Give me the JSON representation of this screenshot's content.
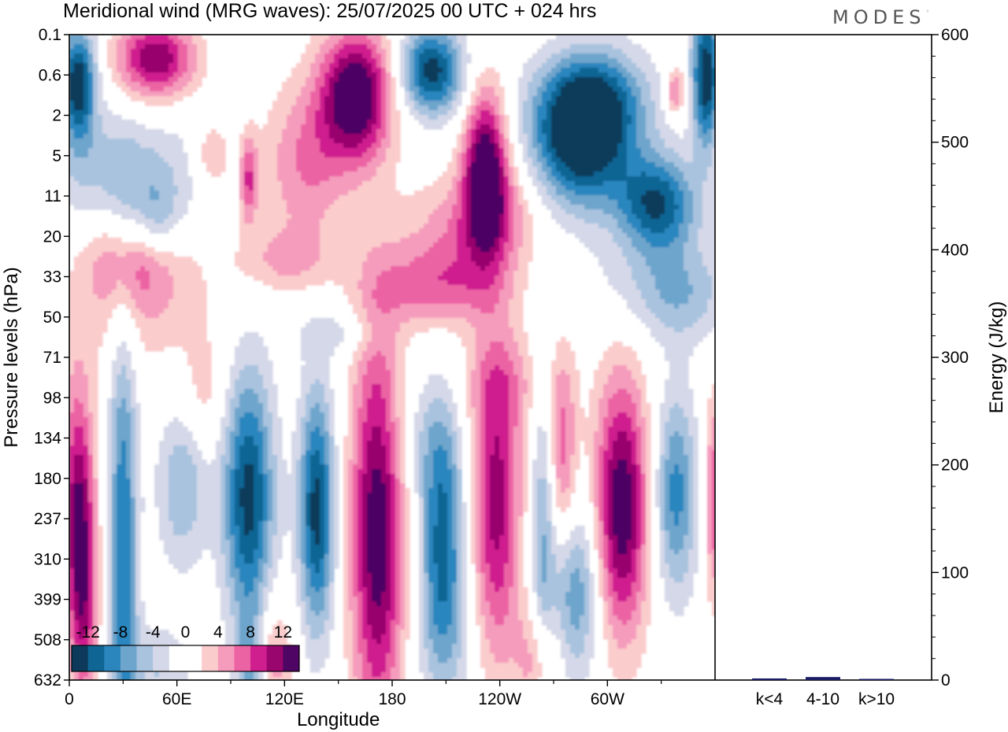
{
  "header": {
    "title": "Meridional wind (MRG waves):  25/07/2025  00 UTC  + 024 hrs",
    "brand": "MODES"
  },
  "colors": {
    "neg": [
      "#0d3a5a",
      "#0f6594",
      "#2b86be",
      "#6ea5cc",
      "#a9c3df",
      "#d5d8e8"
    ],
    "pos": [
      "#fbcccc",
      "#f59cbc",
      "#ec63a4",
      "#cf1e8e",
      "#98066e",
      "#4e0563"
    ],
    "bar": "#1c1c66"
  },
  "chart_data": [
    {
      "type": "heatmap",
      "name": "meridional-wind-cross-section",
      "xlabel": "Longitude",
      "ylabel": "Pressure levels (hPa)",
      "x_ticks": [
        "0",
        "60E",
        "120E",
        "180",
        "120W",
        "60W"
      ],
      "y_ticks": [
        "0.1",
        "0.6",
        "2",
        "5",
        "11",
        "20",
        "33",
        "50",
        "71",
        "98",
        "134",
        "180",
        "237",
        "310",
        "399",
        "508",
        "632"
      ],
      "xlim": [
        0,
        360
      ],
      "colorbar": {
        "labels": [
          "-12",
          "-8",
          "-4",
          "0",
          "4",
          "8",
          "12"
        ],
        "levels": [
          -14,
          -12,
          -10,
          -8,
          -6,
          -4,
          -2,
          2,
          4,
          6,
          8,
          10,
          12,
          14
        ]
      },
      "features": [
        {
          "lon": 5,
          "lev": 1.2,
          "value": -14,
          "w": 10,
          "h": 1.4
        },
        {
          "lon": 355,
          "lev": 1.0,
          "value": -14,
          "w": 8,
          "h": 1.8
        },
        {
          "lon": 48,
          "lev": 0.6,
          "value": 12,
          "w": 22,
          "h": 1.0
        },
        {
          "lon": 160,
          "lev": 1.5,
          "value": 15,
          "w": 20,
          "h": 1.6
        },
        {
          "lon": 202,
          "lev": 0.9,
          "value": -13,
          "w": 18,
          "h": 1.1
        },
        {
          "lon": 232,
          "lev": 3.3,
          "value": 14,
          "w": 12,
          "h": 2.0
        },
        {
          "lon": 285,
          "lev": 2.8,
          "value": -13,
          "w": 28,
          "h": 1.6
        },
        {
          "lon": 328,
          "lev": 4.2,
          "value": -12,
          "w": 22,
          "h": 1.2
        },
        {
          "lon": 292,
          "lev": 1.6,
          "value": -10,
          "w": 30,
          "h": 1.3
        },
        {
          "lon": 338,
          "lev": 1.4,
          "value": 7,
          "w": 6,
          "h": 0.6
        },
        {
          "lon": 48,
          "lev": 4.6,
          "value": -5,
          "w": 14,
          "h": 1.0
        },
        {
          "lon": 30,
          "lev": 3.4,
          "value": -5,
          "w": 45,
          "h": 1.5
        },
        {
          "lon": 100,
          "lev": 3.6,
          "value": 8,
          "w": 5,
          "h": 1.1
        },
        {
          "lon": 80,
          "lev": 3.0,
          "value": 5,
          "w": 10,
          "h": 0.8
        },
        {
          "lon": 132,
          "lev": 3.2,
          "value": 6,
          "w": 25,
          "h": 2.0
        },
        {
          "lon": 35,
          "lev": 5.6,
          "value": 6,
          "w": 25,
          "h": 1.2
        },
        {
          "lon": 210,
          "lev": 5.0,
          "value": 4,
          "w": 30,
          "h": 1.4
        },
        {
          "lon": 205,
          "lev": 6.3,
          "value": 6,
          "w": 35,
          "h": 1.0
        },
        {
          "lon": 240,
          "lev": 4.4,
          "value": 5,
          "w": 25,
          "h": 1.4
        },
        {
          "lon": 120,
          "lev": 5.6,
          "value": 4,
          "w": 30,
          "h": 0.8
        },
        {
          "lon": 330,
          "lev": 6.2,
          "value": -3.5,
          "w": 40,
          "h": 1.2
        },
        {
          "lon": 40,
          "lev": 6.8,
          "value": 3,
          "w": 45,
          "h": 1.8
        },
        {
          "lon": 150,
          "lev": 7.4,
          "value": -3,
          "w": 25,
          "h": 0.6
        },
        {
          "lon": 342,
          "lev": 6.6,
          "value": -3,
          "w": 25,
          "h": 1.2
        },
        {
          "lon": 5,
          "lev": 11.5,
          "value": 11,
          "w": 9,
          "h": 3.0
        },
        {
          "lon": 8,
          "lev": 14.3,
          "value": 8,
          "w": 8,
          "h": 2.5
        },
        {
          "lon": 30,
          "lev": 12.8,
          "value": -10,
          "w": 8,
          "h": 6.0
        },
        {
          "lon": 63,
          "lev": 11.2,
          "value": -6,
          "w": 14,
          "h": 2.0
        },
        {
          "lon": 100,
          "lev": 11.5,
          "value": -13,
          "w": 14,
          "h": 3.2
        },
        {
          "lon": 138,
          "lev": 11.8,
          "value": -13,
          "w": 10,
          "h": 3.0
        },
        {
          "lon": 172,
          "lev": 12.2,
          "value": 14,
          "w": 15,
          "h": 5.0
        },
        {
          "lon": 208,
          "lev": 12.3,
          "value": -10,
          "w": 12,
          "h": 3.0
        },
        {
          "lon": 238,
          "lev": 11.6,
          "value": 11,
          "w": 14,
          "h": 4.0
        },
        {
          "lon": 264,
          "lev": 12.6,
          "value": -6,
          "w": 7,
          "h": 4.5
        },
        {
          "lon": 275,
          "lev": 10.5,
          "value": 7,
          "w": 8,
          "h": 2.5
        },
        {
          "lon": 282,
          "lev": 13.8,
          "value": -8,
          "w": 14,
          "h": 2.2
        },
        {
          "lon": 308,
          "lev": 11.7,
          "value": 14,
          "w": 15,
          "h": 3.2
        },
        {
          "lon": 338,
          "lev": 11.4,
          "value": -9,
          "w": 12,
          "h": 2.5
        },
        {
          "lon": 360,
          "lev": 11.5,
          "value": 8,
          "w": 6,
          "h": 2.5
        },
        {
          "lon": 112,
          "lev": 15.5,
          "value": 6,
          "w": 12,
          "h": 1.6
        },
        {
          "lon": 102,
          "lev": 15.7,
          "value": -8,
          "w": 8,
          "h": 1.4
        },
        {
          "lon": 262,
          "lev": 15.5,
          "value": 6,
          "w": 12,
          "h": 1.4
        },
        {
          "lon": 210,
          "lev": 14.8,
          "value": -3.5,
          "w": 18,
          "h": 2.2
        },
        {
          "lon": 50,
          "lev": 15.8,
          "value": -4,
          "w": 18,
          "h": 1.2
        },
        {
          "lon": 245,
          "lev": 8.6,
          "value": 3,
          "w": 30,
          "h": 1.2
        },
        {
          "lon": 195,
          "lev": 10.0,
          "value": -3,
          "w": 22,
          "h": 1.6
        },
        {
          "lon": 75,
          "lev": 9.0,
          "value": 3,
          "w": 12,
          "h": 1.4
        }
      ]
    },
    {
      "type": "bar",
      "name": "energy-by-wavenumber",
      "categories": [
        "k<4",
        "4-10",
        "k>10"
      ],
      "values": [
        1.5,
        2.8,
        0.6
      ],
      "ylabel": "Energy (J/kg)",
      "ylim": [
        0,
        600
      ],
      "y_ticks": [
        "0",
        "100",
        "200",
        "300",
        "400",
        "500",
        "600"
      ]
    }
  ]
}
